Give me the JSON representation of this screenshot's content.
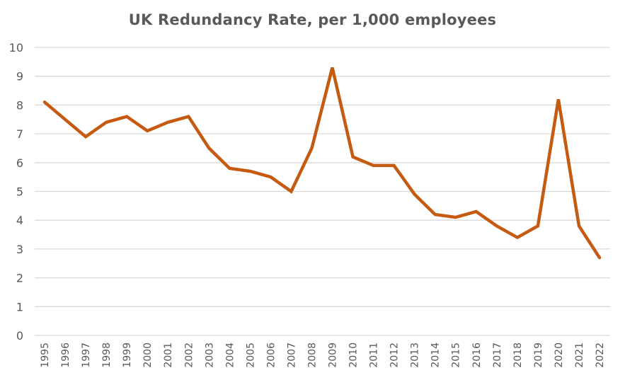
{
  "chart_data": {
    "type": "line",
    "title": "UK Redundancy Rate, per 1,000 employees",
    "xlabel": "",
    "ylabel": "",
    "ylim": [
      0,
      10
    ],
    "yticks": [
      0,
      1,
      2,
      3,
      4,
      5,
      6,
      7,
      8,
      9,
      10
    ],
    "grid": true,
    "legend": null,
    "x": [
      "1995",
      "1996",
      "1997",
      "1998",
      "1999",
      "2000",
      "2001",
      "2002",
      "2003",
      "2004",
      "2005",
      "2006",
      "2007",
      "2008",
      "2009",
      "2010",
      "2011",
      "2012",
      "2013",
      "2014",
      "2015",
      "2016",
      "2017",
      "2018",
      "2019",
      "2020",
      "2021",
      "2022"
    ],
    "series": [
      {
        "name": "Redundancy rate",
        "color": "#C55A11",
        "values": [
          8.1,
          7.5,
          6.9,
          7.4,
          7.6,
          7.1,
          7.4,
          7.6,
          6.5,
          5.8,
          5.7,
          5.5,
          5.0,
          6.5,
          9.3,
          6.2,
          5.9,
          5.9,
          4.9,
          4.2,
          4.1,
          4.3,
          3.8,
          3.4,
          3.8,
          8.2,
          3.8,
          2.7
        ]
      }
    ]
  },
  "colors": {
    "line": "#C55A11",
    "grid": "#D9D9D9",
    "text": "#595959"
  }
}
